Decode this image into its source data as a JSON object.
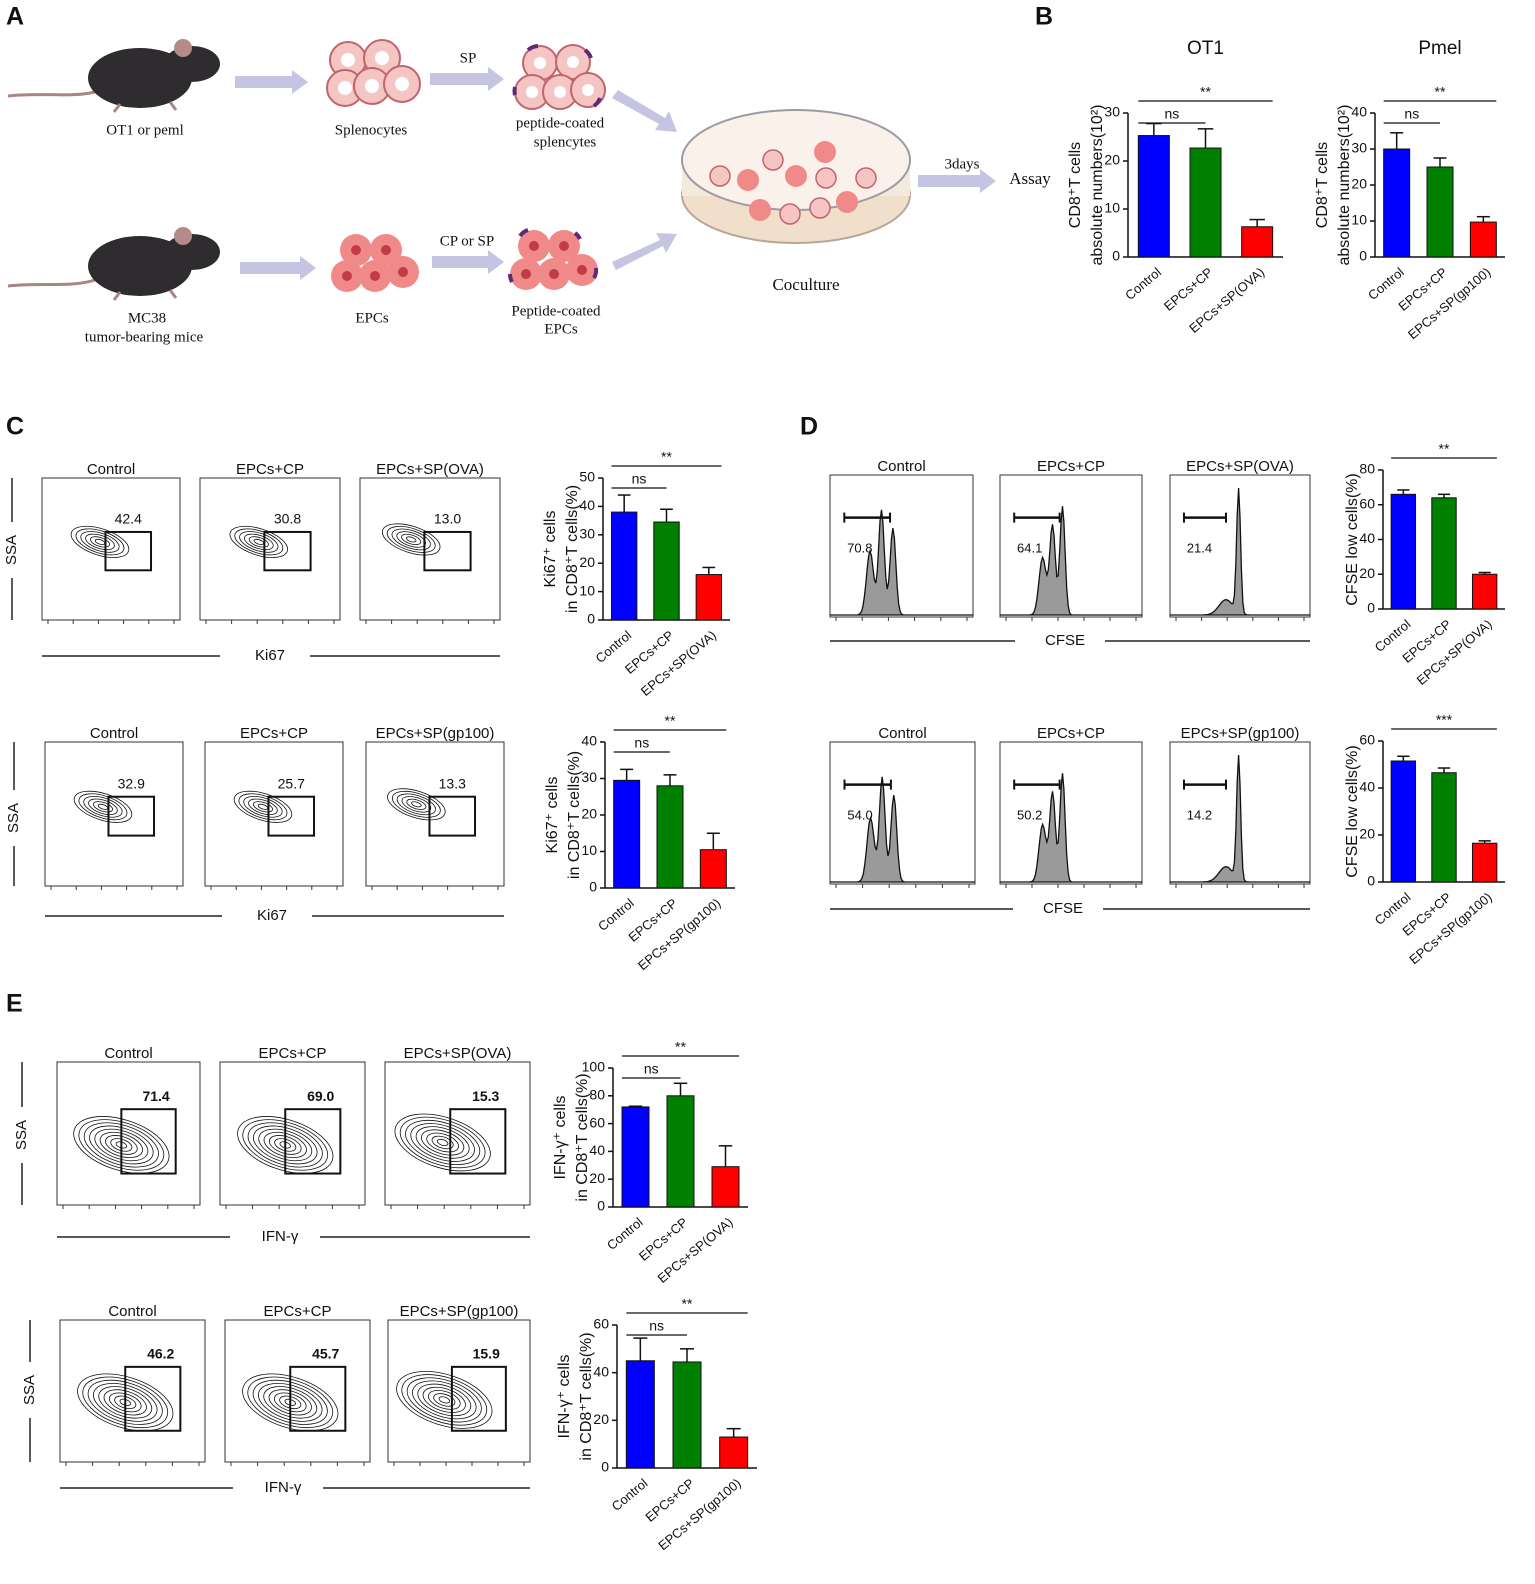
{
  "panel_letters": [
    "A",
    "B",
    "C",
    "D",
    "E"
  ],
  "schematic": {
    "mouse1": "OT1 or peml",
    "splenocytes": "Splenocytes",
    "sp": "SP",
    "peptide_splenocytes": [
      "peptide-coated",
      "splencytes"
    ],
    "mouse2": [
      "MC38",
      "tumor-bearing mice"
    ],
    "epcs": "EPCs",
    "cp_or_sp": "CP or SP",
    "peptide_epcs": [
      "Peptide-coated",
      "EPCs"
    ],
    "coculture": "Coculture",
    "days": "3days",
    "assay": "Assay"
  },
  "flow_rows": [
    {
      "type": "contour",
      "titles": [
        "Control",
        "EPCs+CP",
        "EPCs+SP(OVA)"
      ],
      "gates": [
        "42.4",
        "30.8",
        "13.0"
      ],
      "xlabel": "Ki67",
      "ylabel": "SSA"
    },
    {
      "type": "contour",
      "titles": [
        "Control",
        "EPCs+CP",
        "EPCs+SP(gp100)"
      ],
      "gates": [
        "32.9",
        "25.7",
        "13.3"
      ],
      "xlabel": "Ki67",
      "ylabel": "SSA"
    },
    {
      "type": "histogram",
      "titles": [
        "Control",
        "EPCs+CP",
        "EPCs+SP(OVA)"
      ],
      "gates": [
        "70.8",
        "64.1",
        "21.4"
      ],
      "xlabel": "CFSE"
    },
    {
      "type": "histogram",
      "titles": [
        "Control",
        "EPCs+CP",
        "EPCs+SP(gp100)"
      ],
      "gates": [
        "54.0",
        "50.2",
        "14.2"
      ],
      "xlabel": "CFSE"
    },
    {
      "type": "contour2",
      "titles": [
        "Control",
        "EPCs+CP",
        "EPCs+SP(OVA)"
      ],
      "gates": [
        "71.4",
        "69.0",
        "15.3"
      ],
      "xlabel": "IFN-γ",
      "ylabel": "SSA"
    },
    {
      "type": "contour2",
      "titles": [
        "Control",
        "EPCs+CP",
        "EPCs+SP(gp100)"
      ],
      "gates": [
        "46.2",
        "45.7",
        "15.9"
      ],
      "xlabel": "IFN-γ",
      "ylabel": "SSA"
    }
  ],
  "chart_data": [
    {
      "type": "bar",
      "title": "OT1",
      "categories": [
        "Control",
        "EPCs+CP",
        "EPCs+SP(OVA)"
      ],
      "values": [
        25.3,
        22.7,
        6.3
      ],
      "errors": [
        2.5,
        4,
        1.5
      ],
      "colors": [
        "#0000ff",
        "#008000",
        "#ff0000"
      ],
      "ylim": [
        0,
        30
      ],
      "yticks": [
        0,
        10,
        20,
        30
      ],
      "ylabel": [
        "CD8⁺T cells",
        "absolute numbers(10²)"
      ],
      "annotations": [
        "ns",
        "**"
      ]
    },
    {
      "type": "bar",
      "title": "Pmel",
      "categories": [
        "Control",
        "EPCs+CP",
        "EPCs+SP(gp100)"
      ],
      "values": [
        30,
        25,
        9.7
      ],
      "errors": [
        4.5,
        2.5,
        1.5
      ],
      "colors": [
        "#0000ff",
        "#008000",
        "#ff0000"
      ],
      "ylim": [
        0,
        40
      ],
      "yticks": [
        0,
        10,
        20,
        30,
        40
      ],
      "ylabel": [
        "CD8⁺T cells",
        "absolute numbers(10²)"
      ],
      "annotations": [
        "ns",
        "**"
      ]
    },
    {
      "type": "bar",
      "categories": [
        "Control",
        "EPCs+CP",
        "EPCs+SP(OVA)"
      ],
      "values": [
        38,
        34.5,
        16
      ],
      "errors": [
        6,
        4.5,
        2.5
      ],
      "colors": [
        "#0000ff",
        "#008000",
        "#ff0000"
      ],
      "ylim": [
        0,
        50
      ],
      "yticks": [
        0,
        10,
        20,
        30,
        40,
        50
      ],
      "ylabel": [
        "Ki67⁺ cells",
        "in CD8⁺T cells(%)"
      ],
      "annotations": [
        "ns",
        "**"
      ]
    },
    {
      "type": "bar",
      "categories": [
        "Control",
        "EPCs+CP",
        "EPCs+SP(gp100)"
      ],
      "values": [
        29.5,
        28,
        10.5
      ],
      "errors": [
        3,
        3,
        4.5
      ],
      "colors": [
        "#0000ff",
        "#008000",
        "#ff0000"
      ],
      "ylim": [
        0,
        40
      ],
      "yticks": [
        0,
        10,
        20,
        30,
        40
      ],
      "ylabel": [
        "Ki67⁺ cells",
        "in CD8⁺T cells(%)"
      ],
      "annotations": [
        "ns",
        "**"
      ]
    },
    {
      "type": "bar",
      "categories": [
        "Control",
        "EPCs+CP",
        "EPCs+SP(OVA)"
      ],
      "values": [
        66,
        64,
        20
      ],
      "errors": [
        2.5,
        2,
        1
      ],
      "colors": [
        "#0000ff",
        "#008000",
        "#ff0000"
      ],
      "ylim": [
        0,
        80
      ],
      "yticks": [
        0,
        20,
        40,
        60,
        80
      ],
      "ylabel": [
        "CFSE low cells(%)"
      ],
      "annotations": [
        "**"
      ]
    },
    {
      "type": "bar",
      "categories": [
        "Control",
        "EPCs+CP",
        "EPCs+SP(gp100)"
      ],
      "values": [
        51.5,
        46.5,
        16.5
      ],
      "errors": [
        2,
        2,
        1
      ],
      "colors": [
        "#0000ff",
        "#008000",
        "#ff0000"
      ],
      "ylim": [
        0,
        60
      ],
      "yticks": [
        0,
        20,
        40,
        60
      ],
      "ylabel": [
        "CFSE low cells(%)"
      ],
      "annotations": [
        "***"
      ]
    },
    {
      "type": "bar",
      "categories": [
        "Control",
        "EPCs+CP",
        "EPCs+SP(OVA)"
      ],
      "values": [
        72,
        80,
        29
      ],
      "errors": [
        0.5,
        9,
        15
      ],
      "colors": [
        "#0000ff",
        "#008000",
        "#ff0000"
      ],
      "ylim": [
        0,
        100
      ],
      "yticks": [
        0,
        20,
        40,
        60,
        80,
        100
      ],
      "ylabel": [
        "IFN-γ⁺ cells",
        "in CD8⁺T cells(%)"
      ],
      "annotations": [
        "ns",
        "**"
      ]
    },
    {
      "type": "bar",
      "categories": [
        "Control",
        "EPCs+CP",
        "EPCs+SP(gp100)"
      ],
      "values": [
        45,
        44.5,
        13
      ],
      "errors": [
        9.5,
        5.5,
        3.5
      ],
      "colors": [
        "#0000ff",
        "#008000",
        "#ff0000"
      ],
      "ylim": [
        0,
        60
      ],
      "yticks": [
        0,
        20,
        40,
        60
      ],
      "ylabel": [
        "IFN-γ⁺ cells",
        "in CD8⁺T cells(%)"
      ],
      "annotations": [
        "ns",
        "**"
      ]
    }
  ]
}
